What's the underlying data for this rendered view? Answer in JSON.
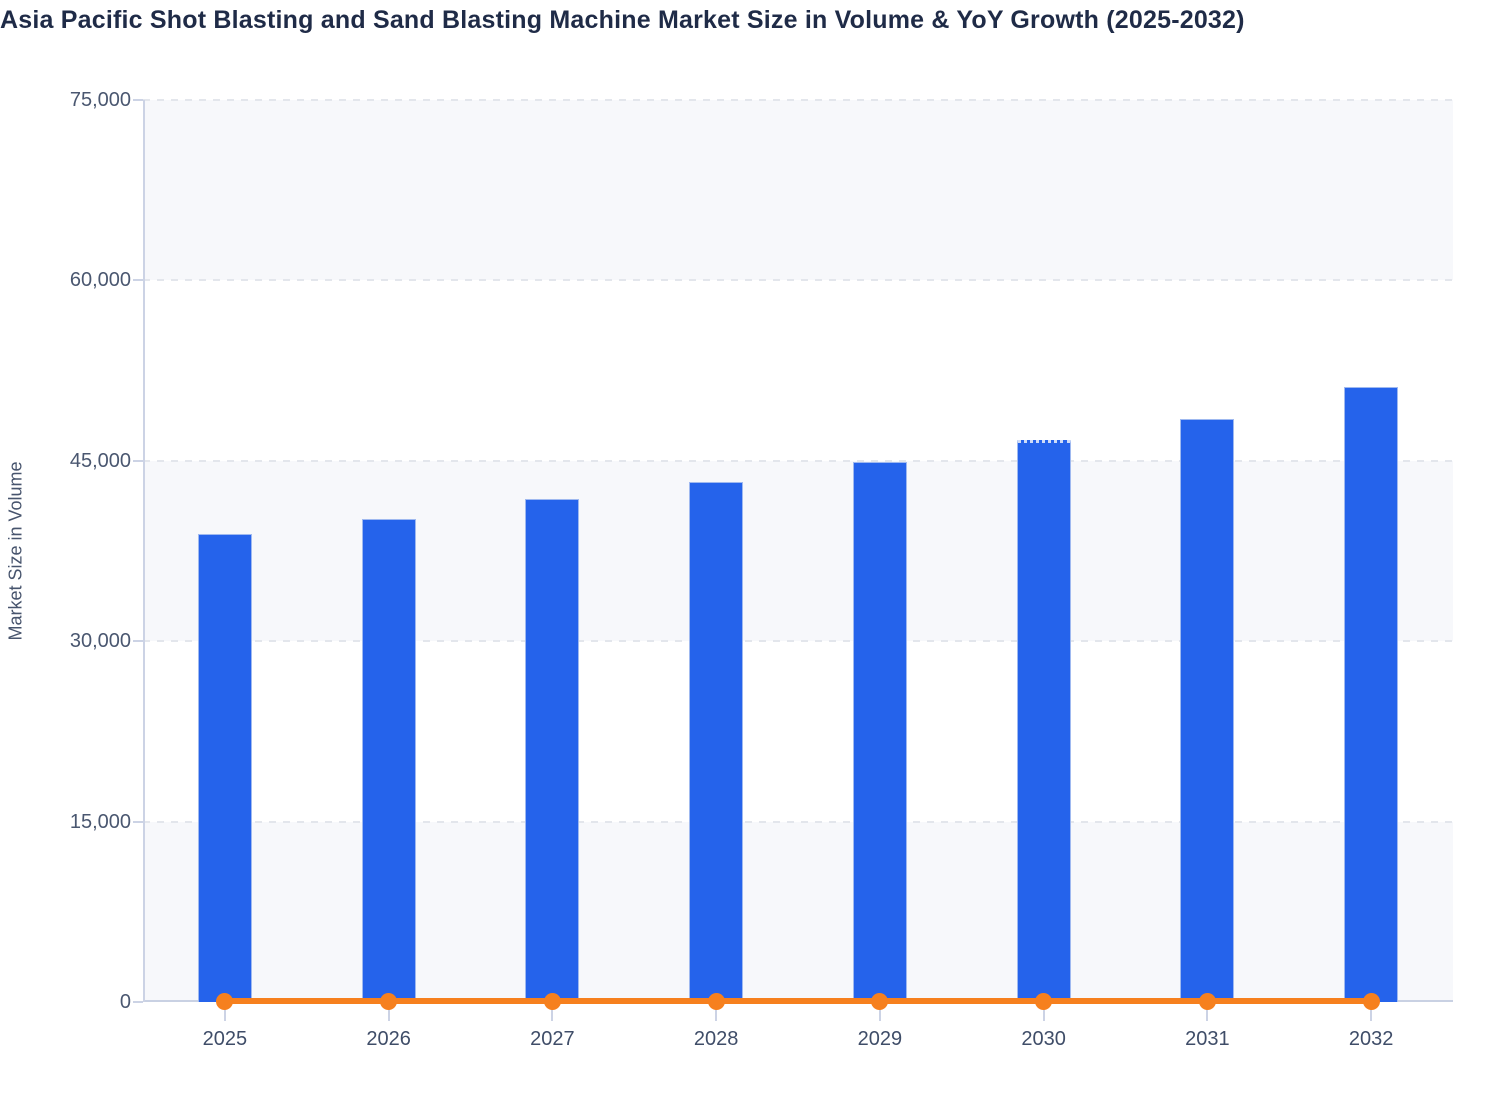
{
  "title": "Asia Pacific Shot Blasting and Sand Blasting Machine Market Size in Volume & YoY Growth (2025-2032)",
  "chart_data": {
    "type": "bar",
    "subtype": "vertical bars with flat line overlay at baseline",
    "categories": [
      "2025",
      "2026",
      "2027",
      "2028",
      "2029",
      "2030",
      "2031",
      "2032"
    ],
    "series": [
      {
        "name": "Market Size in Volume",
        "type": "bar",
        "values": [
          38900,
          40200,
          41800,
          43200,
          44900,
          46700,
          48500,
          51100
        ],
        "dotted_top_index": 5
      },
      {
        "name": "YoY Growth",
        "type": "line",
        "values": [
          0,
          0,
          0,
          0,
          0,
          0,
          0,
          0
        ],
        "note": "orange line lies flat on the zero baseline with a circular marker at each year"
      }
    ],
    "title": "Asia Pacific Shot Blasting and Sand Blasting Machine Market Size in Volume & YoY Growth (2025-2032)",
    "xlabel": "",
    "ylabel": "Market Size in Volume",
    "ylim": [
      0,
      75000
    ],
    "yticks": [
      0,
      15000,
      30000,
      45000,
      60000,
      75000
    ],
    "ytick_labels": [
      "0",
      "15,000",
      "30,000",
      "45,000",
      "60,000",
      "75,000"
    ],
    "grid": "dashed horizontal gridlines with alternating shaded bands (0-15k, 30k-45k, 60k-75k shaded)",
    "legend_position": "none"
  },
  "colors": {
    "bar_fill": "#2563eb",
    "bar_border": "#9fb9f0",
    "line_orange": "#f6801e",
    "band_shade": "#f7f8fb",
    "gridline": "#e3e6ec",
    "axis_line": "#ccd3e5",
    "y_tick_label": "#4a5770",
    "x_tick_label": "#3f4d68",
    "title_text": "#1f2b47",
    "y_axis_title_text": "#47546d",
    "background": "#ffffff"
  }
}
